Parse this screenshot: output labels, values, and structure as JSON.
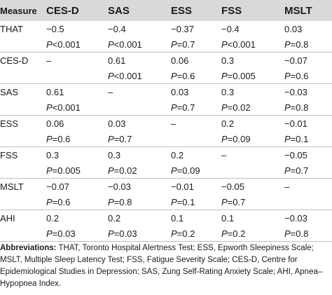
{
  "table": {
    "headers": [
      "Measure",
      "CES-D",
      "SAS",
      "ESS",
      "FSS",
      "MSLT"
    ],
    "rows": [
      {
        "label": "THAT",
        "r": [
          "−0.5",
          "−0.4",
          "−0.37",
          "−0.4",
          "0.03"
        ],
        "p": [
          "P<0.001",
          "P<0.001",
          "P=0.7",
          "P<0.001",
          "P=0.8"
        ]
      },
      {
        "label": "CES-D",
        "r": [
          "–",
          "0.61",
          "0.06",
          "0.3",
          "−0.07"
        ],
        "p": [
          "",
          "P<0.001",
          "P=0.6",
          "P=0.005",
          "P=0.6"
        ]
      },
      {
        "label": "SAS",
        "r": [
          "0.61",
          "–",
          "0.03",
          "0.3",
          "−0.03"
        ],
        "p": [
          "P<0.001",
          "",
          "P=0.7",
          "P=0.02",
          "P=0.8"
        ]
      },
      {
        "label": "ESS",
        "r": [
          "0.06",
          "0.03",
          "–",
          "0.2",
          "−0.01"
        ],
        "p": [
          "P=0.6",
          "P=0.7",
          "",
          "P=0.09",
          "P=0.1"
        ]
      },
      {
        "label": "FSS",
        "r": [
          "0.3",
          "0.3",
          "0.2",
          "–",
          "−0.05"
        ],
        "p": [
          "P=0.005",
          "P=0.02",
          "P=0.09",
          "",
          "P=0.7"
        ]
      },
      {
        "label": "MSLT",
        "r": [
          "−0.07",
          "−0.03",
          "−0.01",
          "−0.05",
          "–"
        ],
        "p": [
          "P=0.6",
          "P=0.8",
          "P=0.1",
          "P=0.7",
          ""
        ]
      },
      {
        "label": "AHI",
        "r": [
          "0.2",
          "0.2",
          "0.1",
          "0.1",
          "−0.03"
        ],
        "p": [
          "P=0.03",
          "P=0.03",
          "P=0.2",
          "P=0.2",
          "P=0.8"
        ]
      }
    ]
  },
  "footnote": {
    "label": "Abbreviations:",
    "text": " THAT, Toronto Hospital Alertness Test; ESS, Epworth Sleepiness Scale; MSLT, Multiple Sleep Latency Test; FSS, Fatigue Severity Scale; CES-D, Centre for Epidemiological Studies in Depression; SAS, Zung Self-Rating Anxiety Scale; AHI, Apnea–Hypopnea Index."
  }
}
